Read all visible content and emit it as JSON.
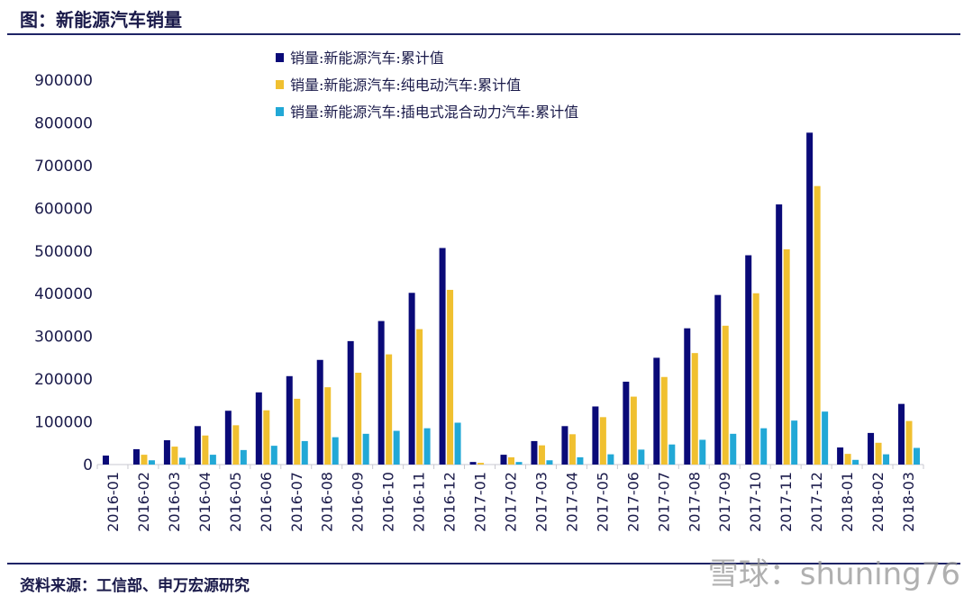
{
  "title": "图：新能源汽车销量",
  "source": "资料来源：工信部、申万宏源研究",
  "watermark": "雪球：shuning76",
  "chart_data": {
    "type": "bar",
    "title": "",
    "xlabel": "",
    "ylabel": "",
    "ylim": [
      0,
      900000
    ],
    "yticks": [
      "0",
      "100000",
      "200000",
      "300000",
      "400000",
      "500000",
      "600000",
      "700000",
      "800000",
      "900000"
    ],
    "grid": false,
    "legend": "top-center",
    "categories": [
      "2016-01",
      "2016-02",
      "2016-03",
      "2016-04",
      "2016-05",
      "2016-06",
      "2016-07",
      "2016-08",
      "2016-09",
      "2016-10",
      "2016-11",
      "2016-12",
      "2017-01",
      "2017-02",
      "2017-03",
      "2017-04",
      "2017-05",
      "2017-06",
      "2017-07",
      "2017-08",
      "2017-09",
      "2017-10",
      "2017-11",
      "2017-12",
      "2018-01",
      "2018-02",
      "2018-03"
    ],
    "series": [
      {
        "name": "销量:新能源汽车:累计值",
        "color": "#0a0a78",
        "values": [
          21000,
          36000,
          57000,
          90000,
          126000,
          169000,
          207000,
          245000,
          289000,
          336000,
          402000,
          507000,
          6000,
          23000,
          55000,
          90000,
          136000,
          194000,
          250000,
          319000,
          397000,
          490000,
          609000,
          777000,
          40000,
          74000,
          142000
        ]
      },
      {
        "name": "销量:新能源汽车:纯电动汽车:累计值",
        "color": "#f0c030",
        "values": [
          0,
          23000,
          42000,
          68000,
          92000,
          127000,
          154000,
          181000,
          215000,
          258000,
          317000,
          409000,
          4000,
          17000,
          45000,
          71000,
          111000,
          159000,
          205000,
          261000,
          325000,
          401000,
          504000,
          652000,
          25000,
          51000,
          102000
        ]
      },
      {
        "name": "销量:新能源汽车:插电式混合动力汽车:累计值",
        "color": "#22a8d6",
        "values": [
          0,
          10000,
          16000,
          23000,
          34000,
          44000,
          55000,
          64000,
          72000,
          79000,
          85000,
          98000,
          0,
          6000,
          10000,
          17000,
          24000,
          35000,
          47000,
          58000,
          72000,
          85000,
          103000,
          124000,
          11000,
          24000,
          39000
        ]
      }
    ]
  }
}
